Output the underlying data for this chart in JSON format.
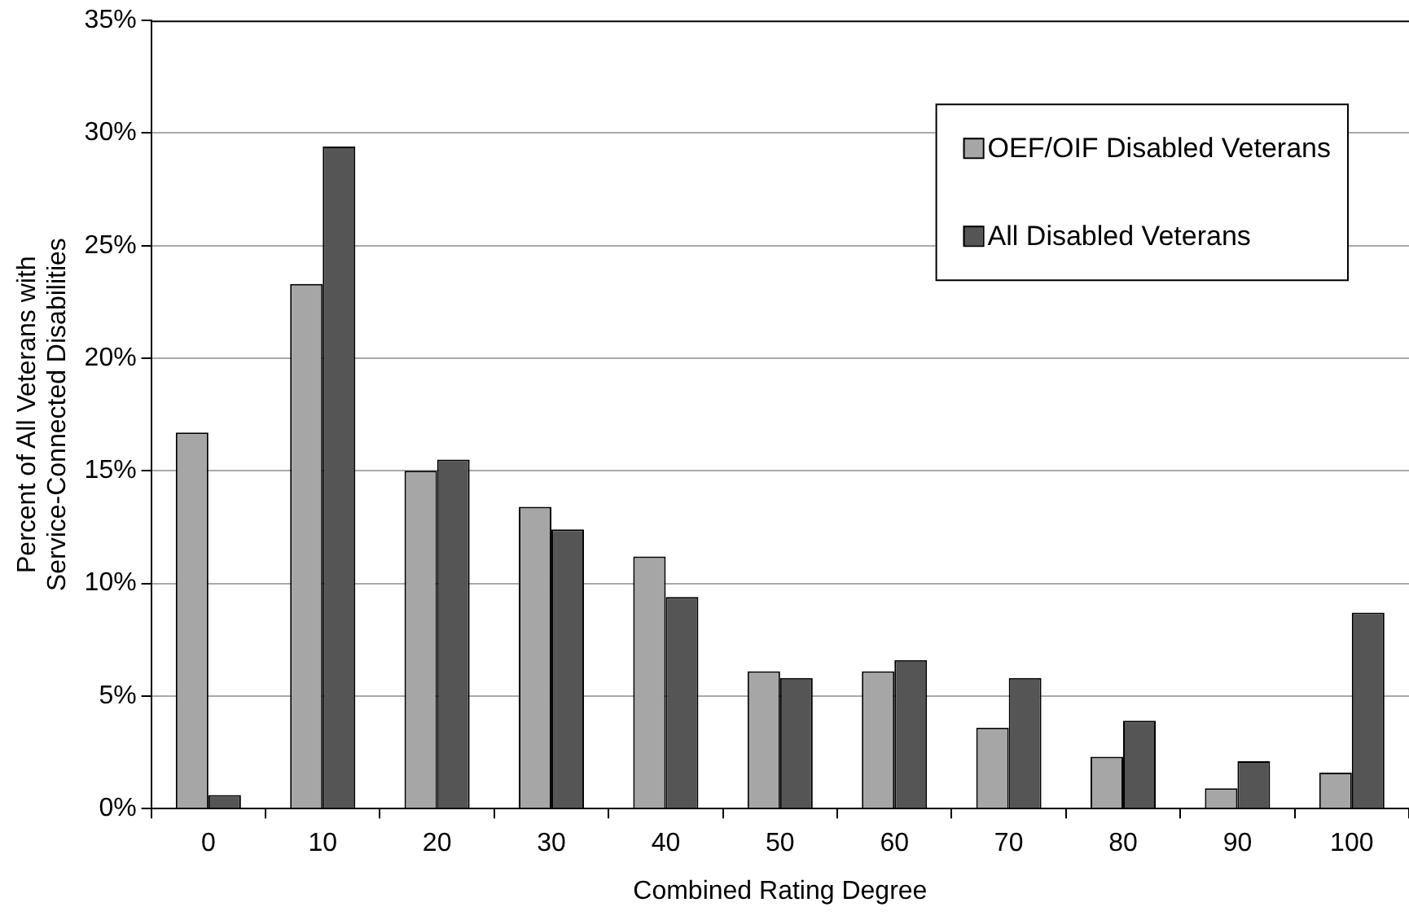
{
  "chart_data": {
    "type": "bar",
    "xlabel": "Combined Rating Degree",
    "ylabel": "Percent of All Veterans with Service-Connected Disabilities",
    "categories": [
      "0",
      "10",
      "20",
      "30",
      "40",
      "50",
      "60",
      "70",
      "80",
      "90",
      "100"
    ],
    "series": [
      {
        "name": "OEF/OIF Disabled Veterans",
        "color": "#a6a6a6",
        "values": [
          16.7,
          23.3,
          15.0,
          13.4,
          11.2,
          6.1,
          6.1,
          3.6,
          2.3,
          0.9,
          1.6
        ]
      },
      {
        "name": "All Disabled Veterans",
        "color": "#555555",
        "values": [
          0.6,
          29.4,
          15.5,
          12.4,
          9.4,
          5.8,
          6.6,
          5.8,
          3.9,
          2.1,
          8.7
        ]
      }
    ],
    "ylim": [
      0,
      35
    ],
    "yticks": [
      {
        "value": 0,
        "label": "0%"
      },
      {
        "value": 5,
        "label": "5%"
      },
      {
        "value": 10,
        "label": "10%"
      },
      {
        "value": 15,
        "label": "15%"
      },
      {
        "value": 20,
        "label": "20%"
      },
      {
        "value": 25,
        "label": "25%"
      },
      {
        "value": 30,
        "label": "30%"
      },
      {
        "value": 35,
        "label": "35%"
      }
    ],
    "grid": "y",
    "legend": "top right"
  }
}
